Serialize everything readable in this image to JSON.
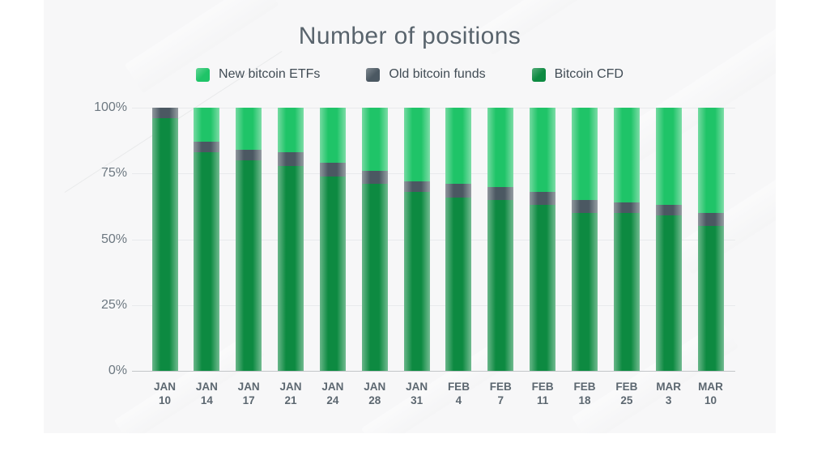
{
  "page": {
    "title": "Number of positions"
  },
  "legend": [
    {
      "label": "New bitcoin ETFs",
      "color": "#1fc468"
    },
    {
      "label": "Old bitcoin funds",
      "color": "#4b5862"
    },
    {
      "label": "Bitcoin CFD",
      "color": "#0d8a41"
    }
  ],
  "colors": {
    "panel_background": "#f7f7f8",
    "page_background": "#ffffff",
    "gridline": "#e8eaec",
    "axis_line": "#c3c6c9",
    "title_text": "#59646d",
    "axis_text": "#6d7881",
    "x_label_text": "#5c6770"
  },
  "chart_data": {
    "type": "bar",
    "variant": "stacked-percent",
    "title": "Number of positions",
    "xlabel": "",
    "ylabel": "",
    "ylim": [
      0,
      100
    ],
    "grid": true,
    "legend_position": "top",
    "y_ticks": [
      {
        "value": 0,
        "label": "0%"
      },
      {
        "value": 25,
        "label": "25%"
      },
      {
        "value": 50,
        "label": "50%"
      },
      {
        "value": 75,
        "label": "75%"
      },
      {
        "value": 100,
        "label": "100%"
      }
    ],
    "categories": [
      {
        "month": "JAN",
        "day": "10"
      },
      {
        "month": "JAN",
        "day": "14"
      },
      {
        "month": "JAN",
        "day": "17"
      },
      {
        "month": "JAN",
        "day": "21"
      },
      {
        "month": "JAN",
        "day": "24"
      },
      {
        "month": "JAN",
        "day": "28"
      },
      {
        "month": "JAN",
        "day": "31"
      },
      {
        "month": "FEB",
        "day": "4"
      },
      {
        "month": "FEB",
        "day": "7"
      },
      {
        "month": "FEB",
        "day": "11"
      },
      {
        "month": "FEB",
        "day": "18"
      },
      {
        "month": "FEB",
        "day": "25"
      },
      {
        "month": "MAR",
        "day": "3"
      },
      {
        "month": "MAR",
        "day": "10"
      }
    ],
    "series": [
      {
        "name": "Bitcoin CFD",
        "color": "#0d8a41",
        "values": [
          96,
          83,
          80,
          78,
          74,
          71,
          68,
          66,
          65,
          63,
          60,
          60,
          59,
          55
        ]
      },
      {
        "name": "Old bitcoin funds",
        "color": "#4b5862",
        "values": [
          4,
          4,
          4,
          5,
          5,
          5,
          4,
          5,
          5,
          5,
          5,
          4,
          4,
          5
        ]
      },
      {
        "name": "New bitcoin ETFs",
        "color": "#1fc468",
        "values": [
          0,
          13,
          16,
          17,
          21,
          24,
          28,
          29,
          30,
          32,
          35,
          36,
          37,
          40
        ]
      }
    ]
  }
}
